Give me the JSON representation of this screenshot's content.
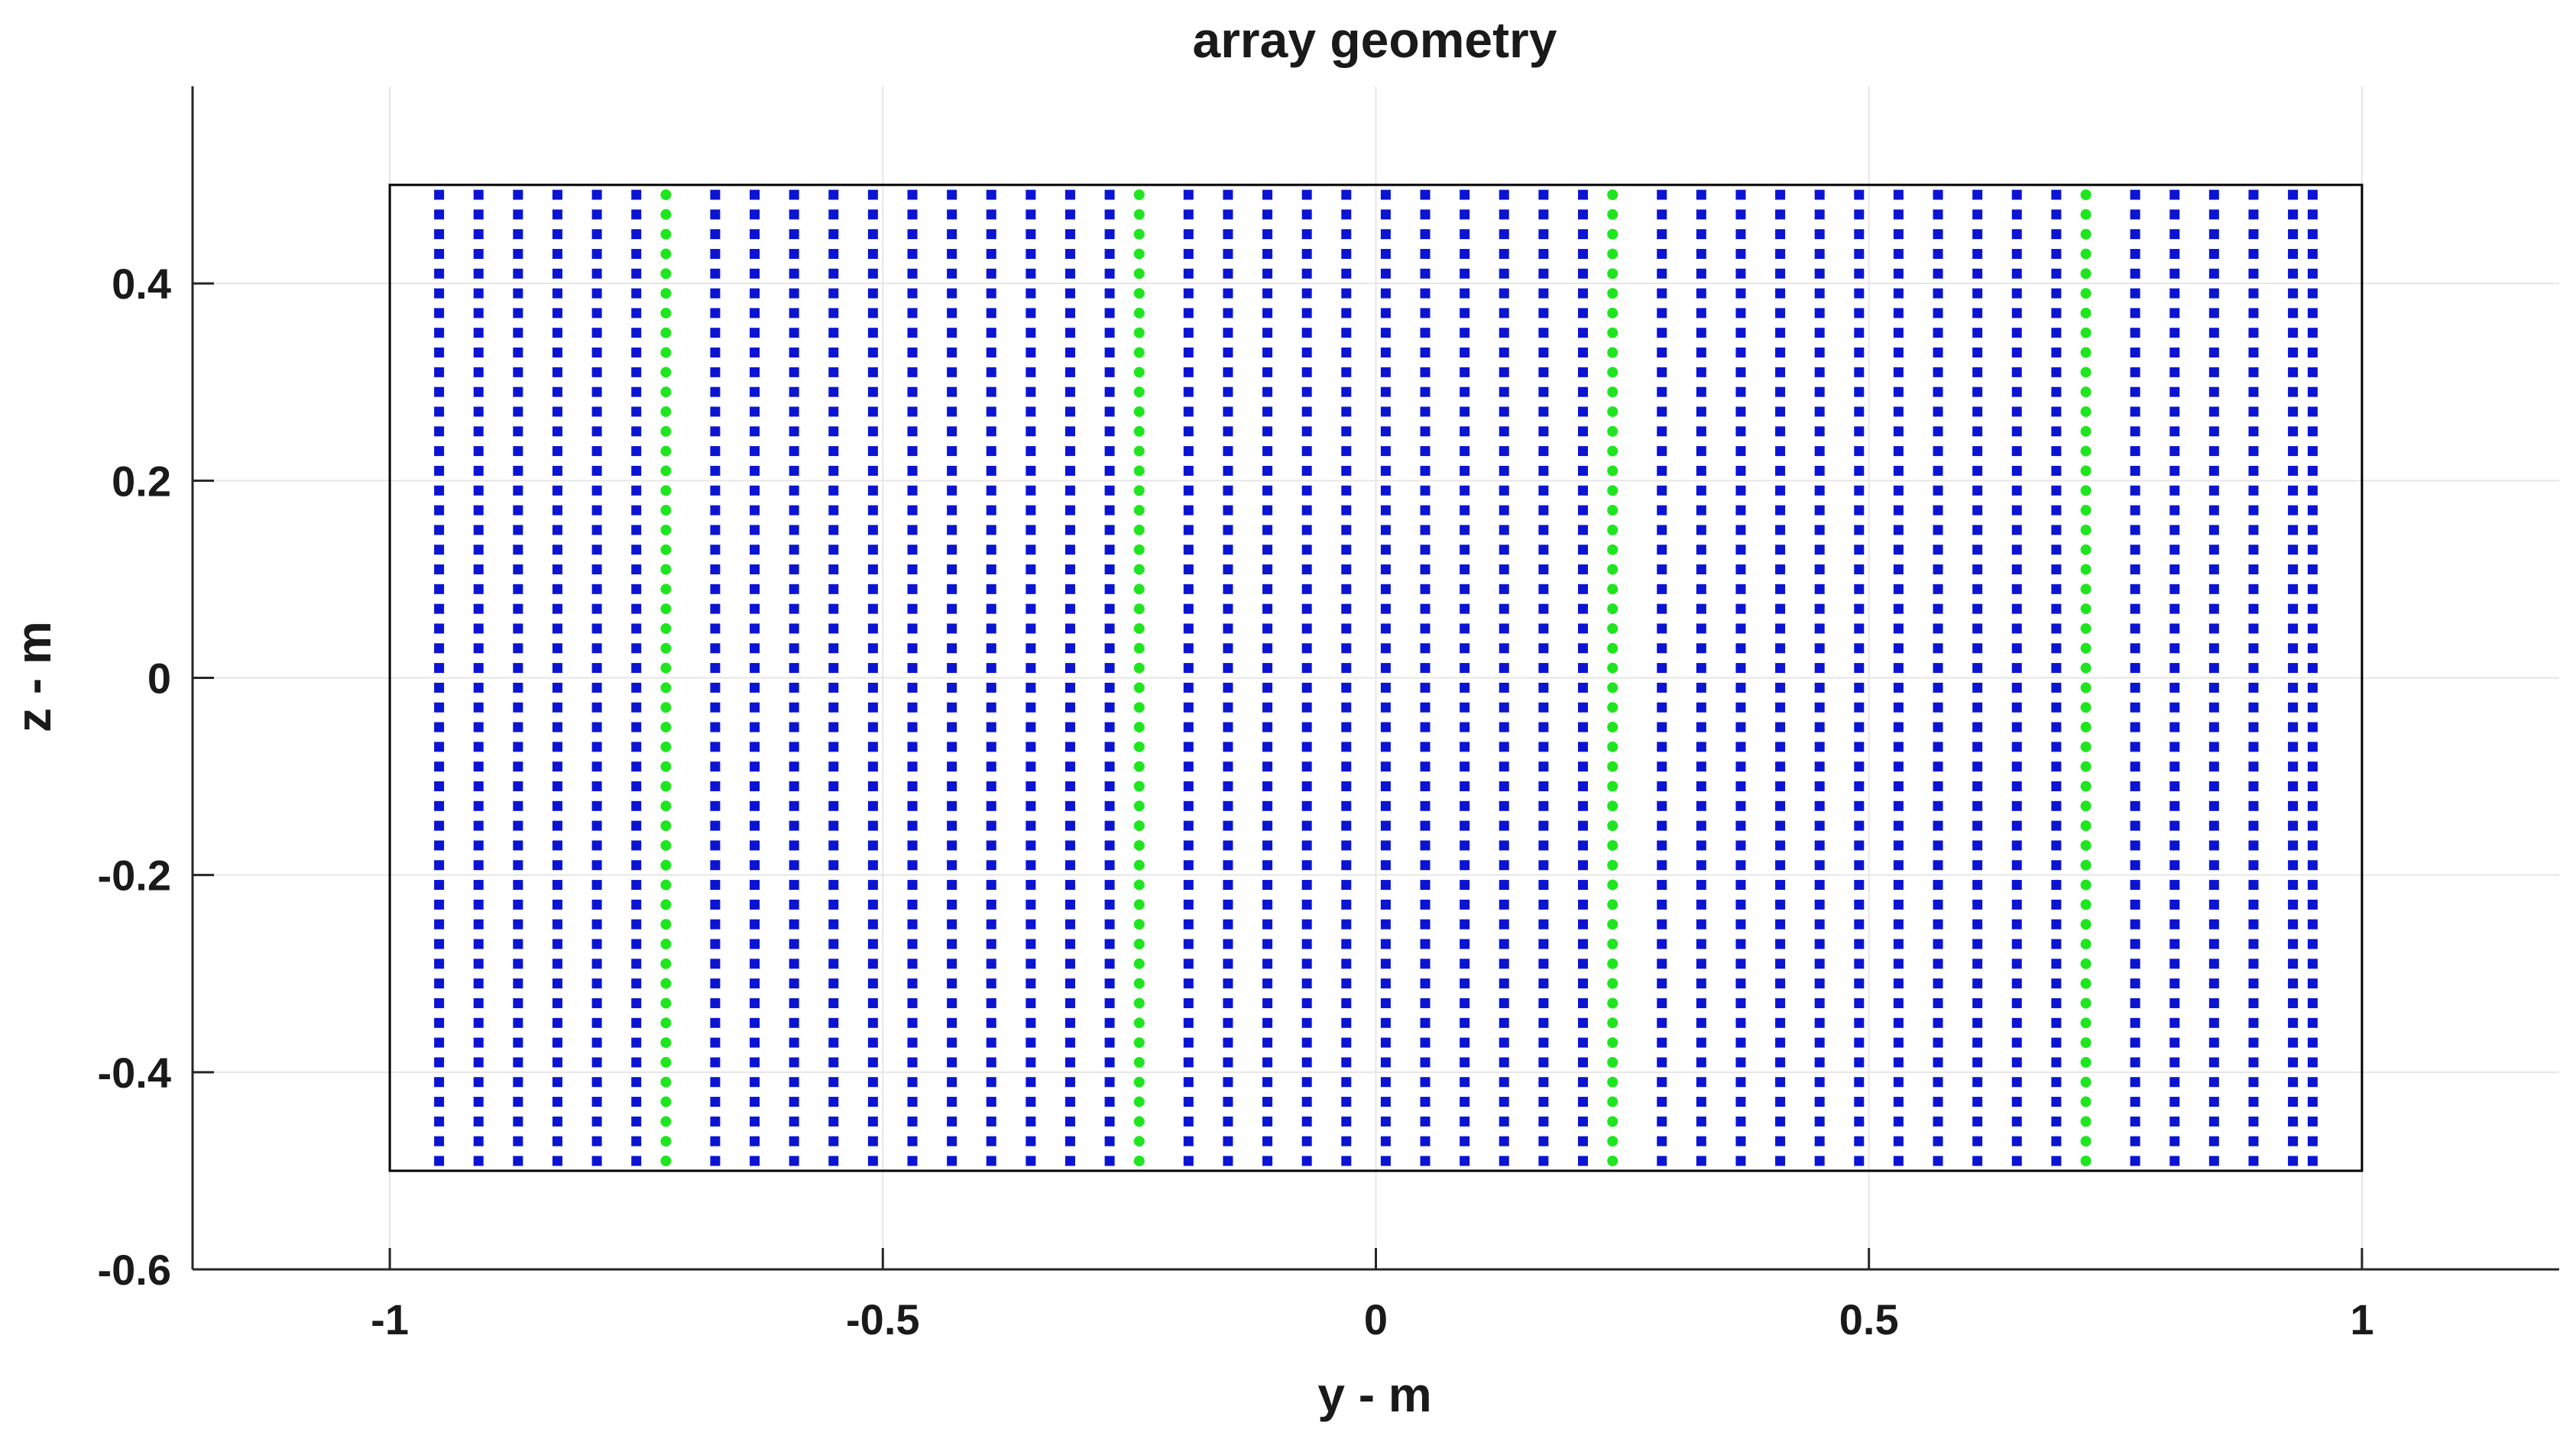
{
  "chart_data": {
    "type": "scatter",
    "title": "array geometry",
    "xlabel": "y - m",
    "ylabel": "z - m",
    "xlim": [
      -1.2,
      1.2
    ],
    "ylim": [
      -0.6,
      0.6
    ],
    "x_ticks": [
      "-1",
      "-0.5",
      "0",
      "0.5",
      "1"
    ],
    "x_tick_values": [
      -1,
      -0.5,
      0,
      0.5,
      1
    ],
    "y_ticks": [
      "0.4",
      "0.2",
      "0",
      "-0.2",
      "-0.4",
      "-0.6"
    ],
    "y_tick_values": [
      0.4,
      0.2,
      0,
      -0.2,
      -0.4,
      -0.6
    ],
    "grid": true,
    "boundary_rect": {
      "y": [
        -1,
        1
      ],
      "z": [
        -0.5,
        0.5
      ],
      "color": "#000000"
    },
    "series": [
      {
        "marker": "square",
        "color": "#0a14d2",
        "y_columns": [
          -0.95,
          -0.91,
          -0.87,
          -0.83,
          -0.79,
          -0.75,
          -0.67,
          -0.63,
          -0.59,
          -0.55,
          -0.51,
          -0.47,
          -0.43,
          -0.39,
          -0.35,
          -0.31,
          -0.27,
          -0.19,
          -0.15,
          -0.11,
          -0.07,
          -0.03,
          0.01,
          0.05,
          0.09,
          0.13,
          0.17,
          0.21,
          0.29,
          0.33,
          0.37,
          0.41,
          0.45,
          0.49,
          0.53,
          0.57,
          0.61,
          0.65,
          0.69,
          0.77,
          0.81,
          0.85,
          0.89,
          0.93,
          0.95
        ],
        "z_range": [
          -0.49,
          0.49
        ],
        "rows": 50
      },
      {
        "marker": "circle",
        "color": "#1ee61e",
        "y_columns": [
          -0.72,
          -0.24,
          0.24,
          0.72
        ],
        "z_range": [
          -0.49,
          0.49
        ],
        "rows": 50
      }
    ]
  }
}
